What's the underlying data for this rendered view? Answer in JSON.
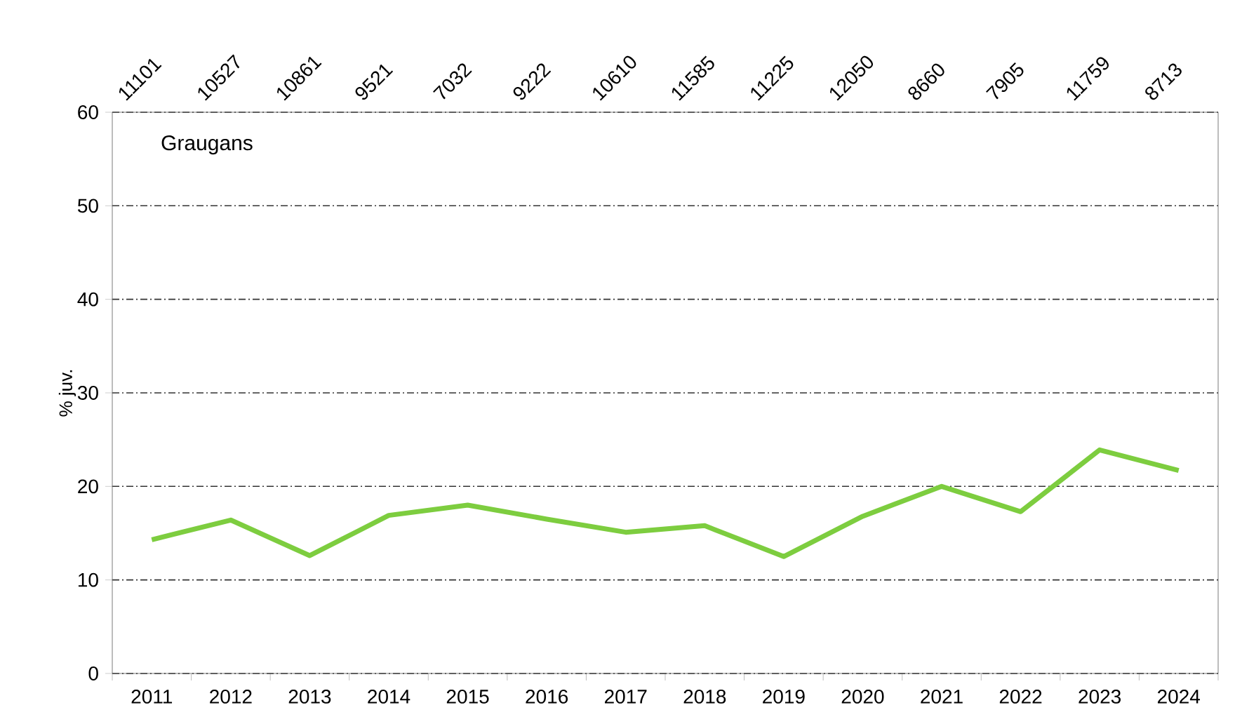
{
  "chart_data": {
    "type": "line",
    "title": "Graugans",
    "ylabel": "% juv.",
    "categories": [
      "2011",
      "2012",
      "2013",
      "2014",
      "2015",
      "2016",
      "2017",
      "2018",
      "2019",
      "2020",
      "2021",
      "2022",
      "2023",
      "2024"
    ],
    "series": [
      {
        "color": "#7dcd3f",
        "values": [
          14.3,
          16.4,
          12.6,
          16.9,
          18,
          16.5,
          15.1,
          15.8,
          12.5,
          16.8,
          20,
          17.3,
          23.9,
          21.7
        ]
      }
    ],
    "ylim": [
      0,
      60
    ],
    "yticks": [
      0,
      10,
      20,
      30,
      40,
      50,
      60
    ],
    "grid": "y",
    "marker": "none",
    "line_style": "solid",
    "annotations": [
      "11101",
      "10527",
      "10861",
      "9521",
      "7032",
      "9222",
      "10610",
      "11585",
      "11225",
      "12050",
      "8660",
      "7905",
      "11759",
      "8713"
    ]
  }
}
